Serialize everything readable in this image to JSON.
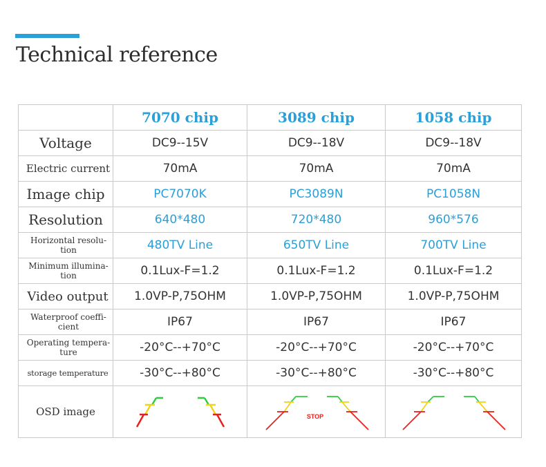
{
  "title": "Technical reference",
  "colors": {
    "accent": "#2a9fd8",
    "text": "#333333",
    "border": "#c9c9c9",
    "osd_green": "#2ecc40",
    "osd_yellow": "#f2d21a",
    "osd_red": "#e8201c"
  },
  "headers": [
    "7070 chip",
    "3089 chip",
    "1058 chip"
  ],
  "rows": [
    {
      "label": "Voltage",
      "values": [
        "DC9--15V",
        "DC9--18V",
        "DC9--18V"
      ]
    },
    {
      "label": "Electric current",
      "values": [
        "70mA",
        "70mA",
        "70mA"
      ]
    },
    {
      "label": "Image chip",
      "values": [
        "PC7070K",
        "PC3089N",
        "PC1058N"
      ]
    },
    {
      "label": "Resolution",
      "values": [
        "640*480",
        "720*480",
        "960*576"
      ]
    },
    {
      "label": "Horizontal resolu-\ntion",
      "values": [
        "480TV Line",
        "650TV Line",
        "700TV Line"
      ]
    },
    {
      "label": "Minimum illumina-\ntion",
      "values": [
        "0.1Lux-F=1.2",
        "0.1Lux-F=1.2",
        "0.1Lux-F=1.2"
      ]
    },
    {
      "label": "Video output",
      "values": [
        "1.0VP-P,75OHM",
        "1.0VP-P,75OHM",
        "1.0VP-P,75OHM"
      ]
    },
    {
      "label": "Waterproof coeffi-\ncient",
      "values": [
        "IP67",
        "IP67",
        "IP67"
      ]
    },
    {
      "label": "Operating tempera-\nture",
      "values": [
        "-20°C--+70°C",
        "-20°C--+70°C",
        "-20°C--+70°C"
      ]
    },
    {
      "label": "storage temperature",
      "values": [
        "-30°C--+80°C",
        "-30°C--+80°C",
        "-30°C--+80°C"
      ]
    }
  ],
  "osd": {
    "label": "OSD image",
    "stop_text": "STOP",
    "images": [
      "parking-guide-lines",
      "parking-guide-lines-with-stop",
      "parking-guide-lines"
    ]
  }
}
